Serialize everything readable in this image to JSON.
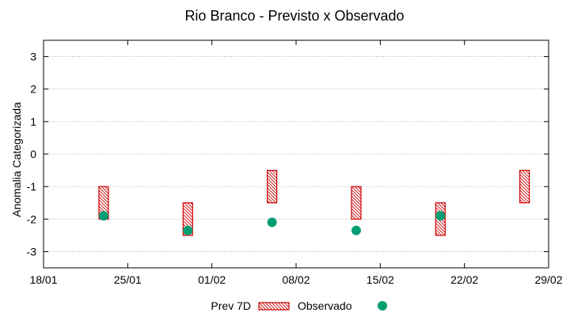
{
  "chart_data": {
    "type": "interval-scatter",
    "title": "Rio Branco - Previsto x Observado",
    "xlabel": "",
    "ylabel": "Anomalia Categorizada",
    "x_tick_labels": [
      "18/01",
      "25/01",
      "01/02",
      "08/02",
      "15/02",
      "22/02",
      "29/02"
    ],
    "x_ticks_day_offset": [
      0,
      7,
      14,
      21,
      28,
      35,
      42
    ],
    "x_range_day_offset": [
      0,
      42
    ],
    "y_ticks": [
      -3,
      -2,
      -1,
      0,
      1,
      2,
      3
    ],
    "y_range": [
      -3.5,
      3.5
    ],
    "grid": true,
    "legend_position": "bottom",
    "series": [
      {
        "name": "Prev 7D",
        "style": "hatched-box",
        "color": "#cc0000",
        "points": [
          {
            "x": "23/01",
            "x_day_offset": 5,
            "low": -2.0,
            "high": -1.0
          },
          {
            "x": "30/01",
            "x_day_offset": 12,
            "low": -2.5,
            "high": -1.5
          },
          {
            "x": "06/02",
            "x_day_offset": 19,
            "low": -1.5,
            "high": -0.5
          },
          {
            "x": "13/02",
            "x_day_offset": 26,
            "low": -2.0,
            "high": -1.0
          },
          {
            "x": "20/02",
            "x_day_offset": 33,
            "low": -2.5,
            "high": -1.5
          },
          {
            "x": "27/02",
            "x_day_offset": 40,
            "low": -1.5,
            "high": -0.5
          }
        ]
      },
      {
        "name": "Observado",
        "style": "circle",
        "color": "#009e73",
        "points": [
          {
            "x": "23/01",
            "x_day_offset": 5,
            "y": -1.9
          },
          {
            "x": "30/01",
            "x_day_offset": 12,
            "y": -2.35
          },
          {
            "x": "06/02",
            "x_day_offset": 19,
            "y": -2.1
          },
          {
            "x": "13/02",
            "x_day_offset": 26,
            "y": -2.35
          },
          {
            "x": "20/02",
            "x_day_offset": 33,
            "y": -1.9
          }
        ]
      }
    ]
  }
}
